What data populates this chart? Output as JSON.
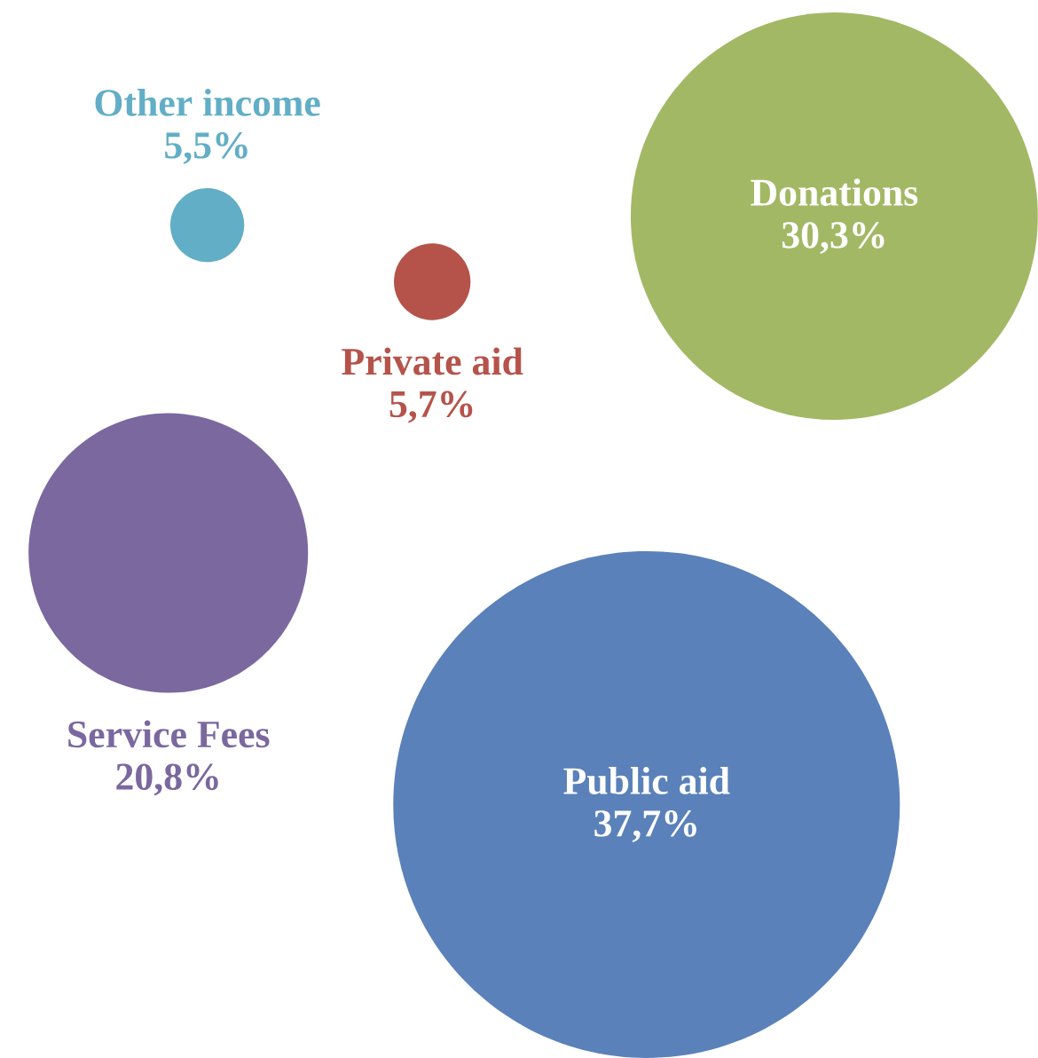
{
  "chart_data": {
    "type": "other",
    "categories": [
      "Other income",
      "Private aid",
      "Donations",
      "Service Fees",
      "Public aid"
    ],
    "values": [
      5.5,
      5.7,
      30.3,
      20.8,
      37.7
    ],
    "value_labels": [
      "5,5%",
      "5,7%",
      "30,3%",
      "20,8%",
      "37,7%"
    ],
    "colors": [
      "#62aec6",
      "#b5534b",
      "#a3b865",
      "#7a689f",
      "#5a81b9"
    ]
  }
}
